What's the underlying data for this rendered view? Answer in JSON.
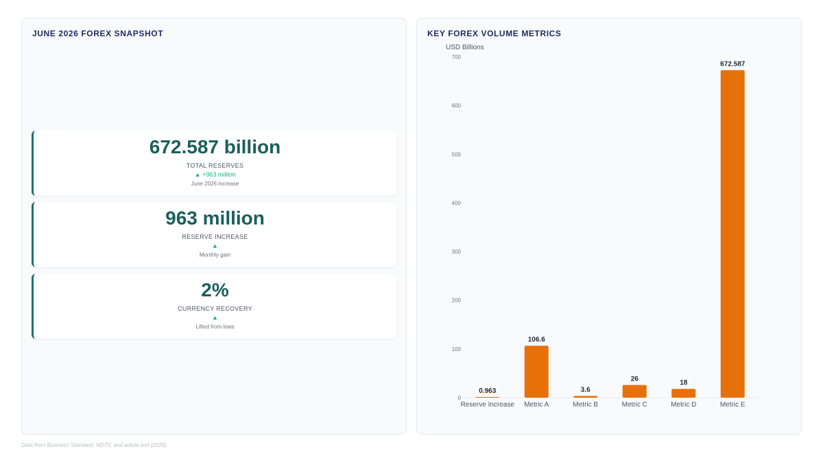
{
  "left": {
    "title": "JUNE 2026 FOREX SNAPSHOT",
    "kpis": [
      {
        "value": "672.587 billion",
        "label": "TOTAL RESERVES",
        "delta": "▲ +963 million",
        "note": "June 2026 increase"
      },
      {
        "value": "963 million",
        "label": "RESERVE INCREASE",
        "delta": "▲",
        "note": "Monthly gain"
      },
      {
        "value": "2%",
        "label": "CURRENCY RECOVERY",
        "delta": "▲",
        "note": "Lifted from lows"
      }
    ]
  },
  "right": {
    "title": "KEY FOREX VOLUME METRICS"
  },
  "chart_data": {
    "type": "bar",
    "title": "",
    "xlabel": "",
    "ylabel": "USD Billions",
    "categories": [
      "Reserve Increase",
      "Metric A",
      "Metric B",
      "Metric C",
      "Metric D",
      "Metric E"
    ],
    "values": [
      0.963,
      106.6,
      3.6,
      26,
      18,
      672.587
    ],
    "value_labels": [
      "0.963",
      "106.6",
      "3.6",
      "26",
      "18",
      "672.587"
    ],
    "ylim": [
      0,
      700
    ],
    "yticks": [
      0,
      100,
      200,
      300,
      400,
      500,
      600,
      700
    ],
    "grid": false,
    "bar_color": "#e8700a"
  },
  "footnote": "Data from Business Standard, NDTV, and article text (2026)"
}
